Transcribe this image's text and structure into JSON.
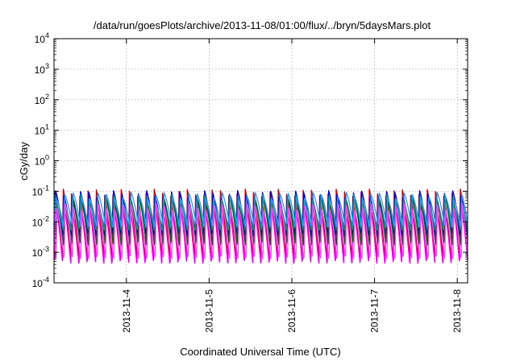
{
  "chart_data": {
    "type": "line",
    "title": "/data/run/goesPlots/archive/2013-11-08/01:00/flux/../bryn/5daysMars.plot",
    "xlabel": "Coordinated Universal Time (UTC)",
    "ylabel": "cGy/day",
    "yscale": "log",
    "ylim": [
      0.0001,
      10000
    ],
    "yticks": [
      {
        "base": "10",
        "exp": "-4"
      },
      {
        "base": "10",
        "exp": "-3"
      },
      {
        "base": "10",
        "exp": "-2"
      },
      {
        "base": "10",
        "exp": "-1"
      },
      {
        "base": "10",
        "exp": "0"
      },
      {
        "base": "10",
        "exp": "1"
      },
      {
        "base": "10",
        "exp": "2"
      },
      {
        "base": "10",
        "exp": "3"
      },
      {
        "base": "10",
        "exp": "4"
      }
    ],
    "xlim": [
      "2013-11-03T03:00",
      "2013-11-08T03:00"
    ],
    "xticks": [
      "2013-11-4",
      "2013-11-5",
      "2013-11-6",
      "2013-11-7",
      "2013-11-8"
    ],
    "xtick_times": [
      "2013-11-04T00:00",
      "2013-11-05T00:00",
      "2013-11-06T00:00",
      "2013-11-07T00:00",
      "2013-11-08T00:00"
    ],
    "grid": true,
    "pattern": {
      "period_hours": 2.4,
      "description": "sawtooth: sharp rise at start of each cycle, exponential decay"
    },
    "series": [
      {
        "color": "#cc0000",
        "peak": 0.09,
        "trough": 0.0009
      },
      {
        "color": "#e600e6",
        "peak": 0.035,
        "trough": 0.0005
      },
      {
        "color": "#0000cc",
        "peak": 0.08,
        "trough": 0.004
      },
      {
        "color": "#00a0a0",
        "peak": 0.06,
        "trough": 0.006
      },
      {
        "color": "#006400",
        "peak": 0.05,
        "trough": 0.002
      },
      {
        "color": "#3399ff",
        "peak": 0.07,
        "trough": 0.008
      },
      {
        "color": "#ff44ff",
        "peak": 0.03,
        "trough": 0.0007
      }
    ]
  }
}
